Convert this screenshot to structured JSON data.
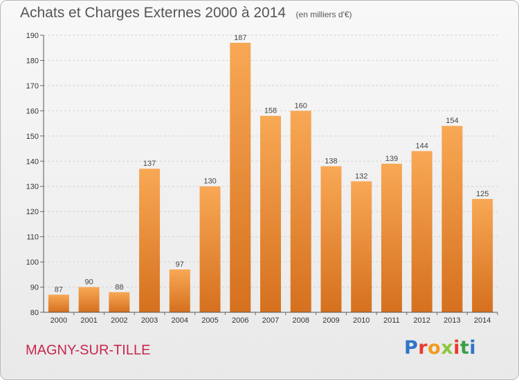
{
  "header": {
    "title": "Achats et Charges Externes 2000 à 2014",
    "unit": "(en milliers d'€)"
  },
  "footer": {
    "town": "MAGNY-SUR-TILLE",
    "brand": "Proxiti"
  },
  "colors": {
    "bar_light": "#f8a855",
    "bar_dark": "#d5701e",
    "town": "#c8264f",
    "gridline": "#cfcfcf"
  },
  "chart_data": {
    "type": "bar",
    "title": "Achats et Charges Externes 2000 à 2014",
    "subtitle": "(en milliers d'€)",
    "xlabel": "",
    "ylabel": "",
    "categories": [
      "2000",
      "2001",
      "2002",
      "2003",
      "2004",
      "2005",
      "2006",
      "2007",
      "2008",
      "2009",
      "2010",
      "2011",
      "2012",
      "2013",
      "2014"
    ],
    "values": [
      87,
      90,
      88,
      137,
      97,
      130,
      187,
      158,
      160,
      138,
      132,
      139,
      144,
      154,
      125
    ],
    "ylim": [
      80,
      190
    ],
    "yticks": [
      80,
      90,
      100,
      110,
      120,
      130,
      140,
      150,
      160,
      170,
      180,
      190
    ],
    "grid": true,
    "data_labels": true
  }
}
